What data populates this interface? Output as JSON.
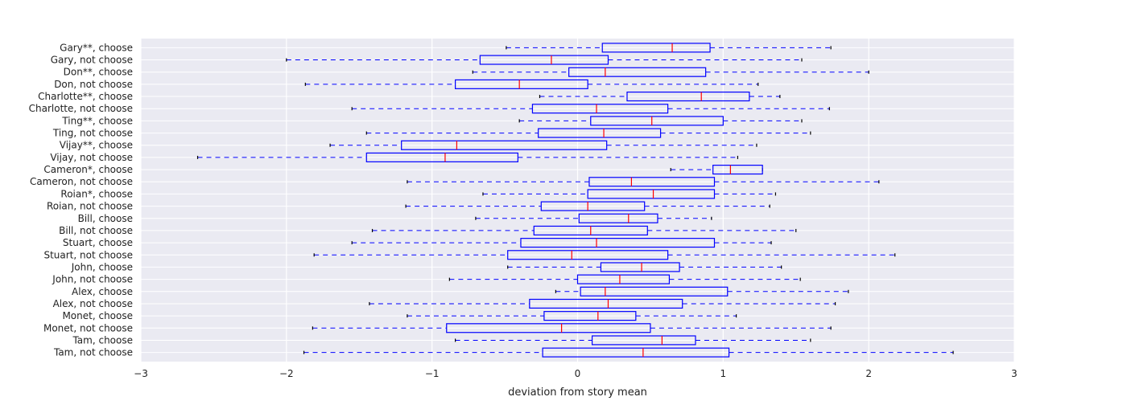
{
  "chart_data": {
    "type": "boxplot",
    "orientation": "horizontal",
    "xlabel": "deviation from story mean",
    "xlim": [
      -3,
      3
    ],
    "xticks": [
      -3,
      -2,
      -1,
      0,
      1,
      2,
      3
    ],
    "grid": true,
    "colors": {
      "plot_background": "#eaeaf2",
      "grid": "#ffffff",
      "box": "#0000ff",
      "median": "#ff0000",
      "whisker": "#0000ff",
      "cap": "#000000"
    },
    "categories": [
      "Gary**, choose",
      "Gary, not choose",
      "Don**, choose",
      "Don, not choose",
      "Charlotte**, choose",
      "Charlotte, not choose",
      "Ting**, choose",
      "Ting, not choose",
      "Vijay**, choose",
      "Vijay, not choose",
      "Cameron*, choose",
      "Cameron, not choose",
      "Roian*, choose",
      "Roian, not choose",
      "Bill, choose",
      "Bill, not choose",
      "Stuart, choose",
      "Stuart, not choose",
      "John, choose",
      "John, not choose",
      "Alex, choose",
      "Alex, not choose",
      "Monet, choose",
      "Monet, not choose",
      "Tam, choose",
      "Tam, not choose"
    ],
    "boxes": [
      {
        "whislo": -0.49,
        "q1": 0.17,
        "med": 0.65,
        "q3": 0.91,
        "whishi": 1.74
      },
      {
        "whislo": -2.0,
        "q1": -0.67,
        "med": -0.18,
        "q3": 0.21,
        "whishi": 1.54
      },
      {
        "whislo": -0.72,
        "q1": -0.06,
        "med": 0.19,
        "q3": 0.88,
        "whishi": 2.0
      },
      {
        "whislo": -1.87,
        "q1": -0.84,
        "med": -0.4,
        "q3": 0.07,
        "whishi": 1.24
      },
      {
        "whislo": -0.26,
        "q1": 0.34,
        "med": 0.85,
        "q3": 1.18,
        "whishi": 1.39
      },
      {
        "whislo": -1.55,
        "q1": -0.31,
        "med": 0.13,
        "q3": 0.62,
        "whishi": 1.73
      },
      {
        "whislo": -0.4,
        "q1": 0.09,
        "med": 0.51,
        "q3": 1.0,
        "whishi": 1.54
      },
      {
        "whislo": -1.45,
        "q1": -0.27,
        "med": 0.18,
        "q3": 0.57,
        "whishi": 1.6
      },
      {
        "whislo": -1.7,
        "q1": -1.21,
        "med": -0.83,
        "q3": 0.2,
        "whishi": 1.23
      },
      {
        "whislo": -2.61,
        "q1": -1.45,
        "med": -0.91,
        "q3": -0.41,
        "whishi": 1.1
      },
      {
        "whislo": 0.64,
        "q1": 0.93,
        "med": 1.05,
        "q3": 1.27,
        "whishi": 1.27
      },
      {
        "whislo": -1.17,
        "q1": 0.08,
        "med": 0.37,
        "q3": 0.94,
        "whishi": 2.07
      },
      {
        "whislo": -0.65,
        "q1": 0.07,
        "med": 0.52,
        "q3": 0.94,
        "whishi": 1.36
      },
      {
        "whislo": -1.18,
        "q1": -0.25,
        "med": 0.07,
        "q3": 0.46,
        "whishi": 1.32
      },
      {
        "whislo": -0.7,
        "q1": 0.01,
        "med": 0.35,
        "q3": 0.55,
        "whishi": 0.92
      },
      {
        "whislo": -1.41,
        "q1": -0.3,
        "med": 0.09,
        "q3": 0.48,
        "whishi": 1.5
      },
      {
        "whislo": -1.55,
        "q1": -0.39,
        "med": 0.13,
        "q3": 0.94,
        "whishi": 1.33
      },
      {
        "whislo": -1.81,
        "q1": -0.48,
        "med": -0.04,
        "q3": 0.62,
        "whishi": 2.18
      },
      {
        "whislo": -0.48,
        "q1": 0.16,
        "med": 0.44,
        "q3": 0.7,
        "whishi": 1.4
      },
      {
        "whislo": -0.88,
        "q1": 0.0,
        "med": 0.29,
        "q3": 0.63,
        "whishi": 1.53
      },
      {
        "whislo": -0.15,
        "q1": 0.02,
        "med": 0.19,
        "q3": 1.03,
        "whishi": 1.86
      },
      {
        "whislo": -1.43,
        "q1": -0.33,
        "med": 0.21,
        "q3": 0.72,
        "whishi": 1.77
      },
      {
        "whislo": -1.17,
        "q1": -0.23,
        "med": 0.14,
        "q3": 0.4,
        "whishi": 1.09
      },
      {
        "whislo": -1.82,
        "q1": -0.9,
        "med": -0.11,
        "q3": 0.5,
        "whishi": 1.74
      },
      {
        "whislo": -0.84,
        "q1": 0.1,
        "med": 0.58,
        "q3": 0.81,
        "whishi": 1.6
      },
      {
        "whislo": -1.88,
        "q1": -0.24,
        "med": 0.45,
        "q3": 1.04,
        "whishi": 2.58
      }
    ]
  }
}
